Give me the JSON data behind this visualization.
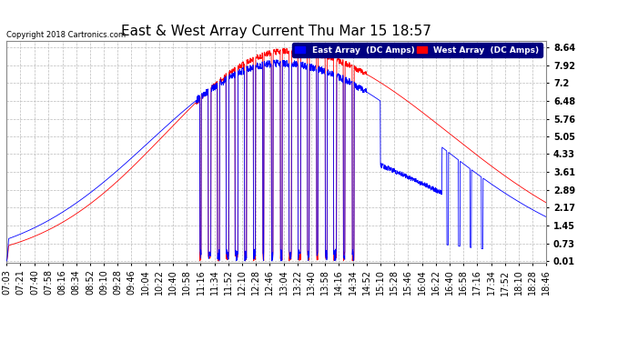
{
  "title": "East & West Array Current Thu Mar 15 18:57",
  "copyright": "Copyright 2018 Cartronics.com",
  "legend_east": "East Array  (DC Amps)",
  "legend_west": "West Array  (DC Amps)",
  "east_color": "#0000ff",
  "west_color": "#ff0000",
  "background_color": "#ffffff",
  "plot_bg_color": "#ffffff",
  "grid_color": "#bbbbbb",
  "yticks": [
    0.01,
    0.73,
    1.45,
    2.17,
    2.89,
    3.61,
    4.33,
    5.05,
    5.76,
    6.48,
    7.2,
    7.92,
    8.64
  ],
  "ylim": [
    -0.05,
    8.9
  ],
  "title_fontsize": 11,
  "tick_fontsize": 7,
  "x_tick_labels": [
    "07:03",
    "07:21",
    "07:40",
    "07:58",
    "08:16",
    "08:34",
    "08:52",
    "09:10",
    "09:28",
    "09:46",
    "10:04",
    "10:22",
    "10:40",
    "10:58",
    "11:16",
    "11:34",
    "11:52",
    "12:10",
    "12:28",
    "12:46",
    "13:04",
    "13:22",
    "13:40",
    "13:58",
    "14:16",
    "14:34",
    "14:52",
    "15:10",
    "15:28",
    "15:46",
    "16:04",
    "16:22",
    "16:40",
    "16:58",
    "17:16",
    "17:34",
    "17:52",
    "18:10",
    "18:28",
    "18:46"
  ]
}
